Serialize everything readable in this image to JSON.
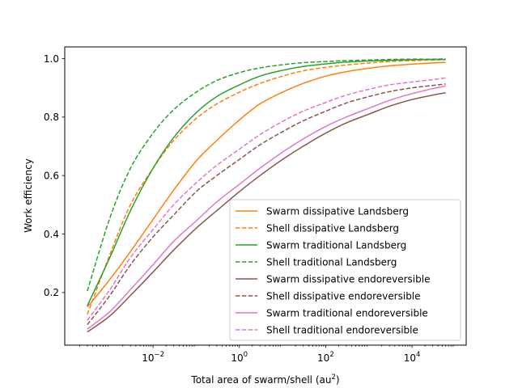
{
  "chart_data": {
    "type": "line",
    "title": "",
    "xlabel": "Total area of swarm/shell (au",
    "xlabel_sup": "2",
    "xlabel_end": ")",
    "ylabel": "Work efficiency",
    "xscale": "log",
    "xlim": [
      9e-05,
      180000
    ],
    "ylim": [
      0.02,
      1.04
    ],
    "x_ticks": [
      {
        "value": 0.01,
        "base": "10",
        "exp": "−2"
      },
      {
        "value": 1,
        "base": "10",
        "exp": "0"
      },
      {
        "value": 100,
        "base": "10",
        "exp": "2"
      },
      {
        "value": 10000,
        "base": "10",
        "exp": "4"
      }
    ],
    "y_ticks": [
      {
        "value": 0.2,
        "label": "0.2"
      },
      {
        "value": 0.4,
        "label": "0.4"
      },
      {
        "value": 0.6,
        "label": "0.6"
      },
      {
        "value": 0.8,
        "label": "0.8"
      },
      {
        "value": 1.0,
        "label": "1.0"
      }
    ],
    "grid": false,
    "legend_position": "lower-right",
    "x": [
      0.0003,
      0.001,
      0.003,
      0.01,
      0.03,
      0.1,
      0.3,
      1,
      3,
      10,
      30,
      100,
      300,
      1000,
      3000,
      10000,
      30000,
      60000
    ],
    "series": [
      {
        "name": "Swarm dissipative Landsberg",
        "color": "#ff7f0e",
        "dash": "solid",
        "values": [
          0.15,
          0.245,
          0.34,
          0.45,
          0.55,
          0.65,
          0.72,
          0.79,
          0.845,
          0.885,
          0.915,
          0.94,
          0.955,
          0.967,
          0.975,
          0.981,
          0.985,
          0.987
        ]
      },
      {
        "name": "Shell dissipative Landsberg",
        "color": "#ff7f0e",
        "dash": "dashed",
        "values": [
          0.125,
          0.33,
          0.5,
          0.625,
          0.72,
          0.795,
          0.845,
          0.885,
          0.915,
          0.94,
          0.958,
          0.97,
          0.978,
          0.985,
          0.99,
          0.993,
          0.995,
          0.996
        ]
      },
      {
        "name": "Swarm traditional Landsberg",
        "color": "#2ca02c",
        "dash": "solid",
        "values": [
          0.155,
          0.32,
          0.48,
          0.625,
          0.73,
          0.815,
          0.87,
          0.91,
          0.94,
          0.96,
          0.973,
          0.982,
          0.988,
          0.992,
          0.994,
          0.996,
          0.997,
          0.997
        ]
      },
      {
        "name": "Shell traditional Landsberg",
        "color": "#2ca02c",
        "dash": "dashed",
        "values": [
          0.205,
          0.455,
          0.625,
          0.745,
          0.825,
          0.885,
          0.925,
          0.952,
          0.968,
          0.979,
          0.986,
          0.99,
          0.993,
          0.995,
          0.997,
          0.998,
          0.998,
          0.999
        ]
      },
      {
        "name": "Swarm dissipative endoreversible",
        "color": "#8c564b",
        "dash": "solid",
        "values": [
          0.065,
          0.12,
          0.19,
          0.27,
          0.345,
          0.42,
          0.48,
          0.545,
          0.6,
          0.655,
          0.7,
          0.745,
          0.78,
          0.81,
          0.837,
          0.86,
          0.875,
          0.883
        ]
      },
      {
        "name": "Shell dissipative endoreversible",
        "color": "#8c564b",
        "dash": "dashed",
        "values": [
          0.09,
          0.19,
          0.295,
          0.39,
          0.465,
          0.545,
          0.6,
          0.655,
          0.705,
          0.75,
          0.787,
          0.82,
          0.848,
          0.87,
          0.887,
          0.9,
          0.908,
          0.913
        ]
      },
      {
        "name": "Swarm traditional endoreversible",
        "color": "#e377c2",
        "dash": "solid",
        "values": [
          0.075,
          0.135,
          0.21,
          0.295,
          0.375,
          0.445,
          0.51,
          0.57,
          0.625,
          0.68,
          0.725,
          0.768,
          0.8,
          0.83,
          0.857,
          0.88,
          0.897,
          0.906
        ]
      },
      {
        "name": "Shell traditional endoreversible",
        "color": "#e377c2",
        "dash": "dashed",
        "values": [
          0.105,
          0.21,
          0.32,
          0.415,
          0.5,
          0.575,
          0.635,
          0.69,
          0.74,
          0.785,
          0.82,
          0.85,
          0.875,
          0.895,
          0.91,
          0.92,
          0.928,
          0.934
        ]
      }
    ]
  }
}
